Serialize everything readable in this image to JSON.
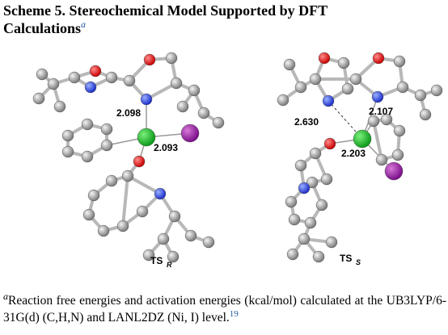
{
  "title": {
    "text": "Scheme 5. Stereochemical Model Supported by DFT Calculations",
    "marker": "a"
  },
  "structures": [
    {
      "label": "TS",
      "subscript": "R",
      "distances": [
        "2.098",
        "2.093"
      ]
    },
    {
      "label": "TS",
      "subscript": "S",
      "distances": [
        "2.107",
        "2.630",
        "2.203"
      ]
    }
  ],
  "footnote": {
    "marker": "a",
    "text": "Reaction free energies and activation energies (kcal/mol) calculated at the UB3LYP/6-31G(d) (C,H,N) and LANL2DZ (Ni, I) level.",
    "ref": "19"
  }
}
